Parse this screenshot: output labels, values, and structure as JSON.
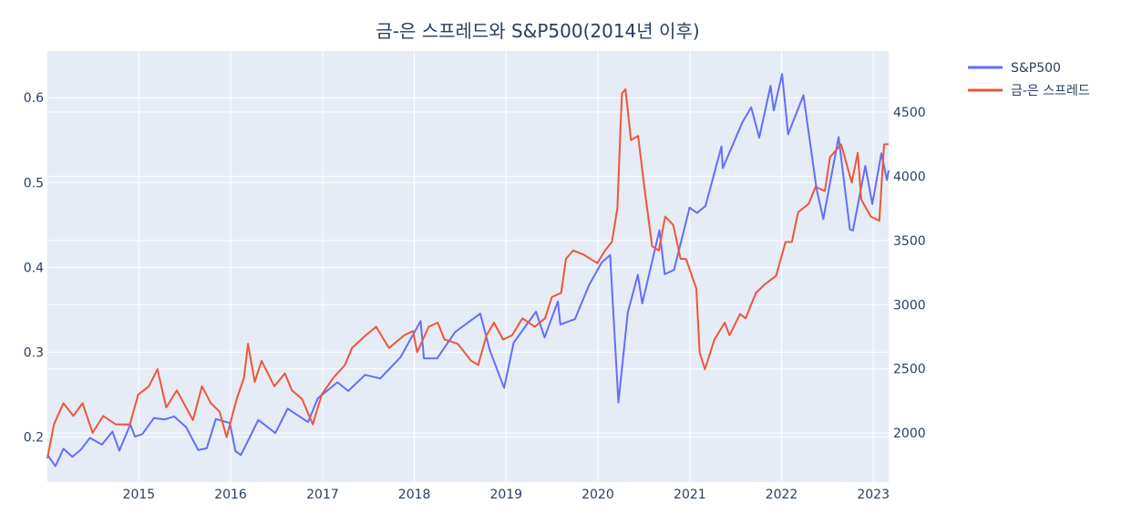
{
  "chart_data": {
    "type": "line",
    "title": "금-은 스프레드와 S&P500(2014년 이후)",
    "legend_position": "top-right",
    "grid": true,
    "colors": {
      "plot_bg": "#e5ecf6",
      "grid": "#ffffff",
      "text": "#2a3f5f"
    },
    "x_axis": {
      "type": "date",
      "range": [
        "2014-01-02",
        "2023-03-03"
      ],
      "ticks": [
        "2015-01-01",
        "2016-01-01",
        "2017-01-01",
        "2018-01-01",
        "2019-01-01",
        "2020-01-01",
        "2021-01-01",
        "2022-01-01",
        "2023-01-01"
      ],
      "tick_labels": [
        "2015",
        "2016",
        "2017",
        "2018",
        "2019",
        "2020",
        "2021",
        "2022",
        "2023"
      ]
    },
    "y_left": {
      "range": [
        0.147,
        0.655
      ],
      "ticks": [
        0.2,
        0.3,
        0.4,
        0.5,
        0.6
      ],
      "tick_labels": [
        "0.2",
        "0.3",
        "0.4",
        "0.5",
        "0.6"
      ]
    },
    "y_right": {
      "range": [
        1618,
        4975
      ],
      "ticks": [
        2000,
        2500,
        3000,
        3500,
        4000,
        4500
      ],
      "tick_labels": [
        "2000",
        "2500",
        "3000",
        "3500",
        "4000",
        "4500"
      ]
    },
    "series": [
      {
        "name": "S&P500",
        "axis": "right",
        "color": "#636efa",
        "points": [
          [
            "2014-01-02",
            1831
          ],
          [
            "2014-02-03",
            1742
          ],
          [
            "2014-03-07",
            1878
          ],
          [
            "2014-04-11",
            1815
          ],
          [
            "2014-05-15",
            1870
          ],
          [
            "2014-06-20",
            1962
          ],
          [
            "2014-08-07",
            1910
          ],
          [
            "2014-09-18",
            2011
          ],
          [
            "2014-10-15",
            1862
          ],
          [
            "2014-11-28",
            2067
          ],
          [
            "2014-12-16",
            1972
          ],
          [
            "2015-01-15",
            1992
          ],
          [
            "2015-03-02",
            2117
          ],
          [
            "2015-04-15",
            2106
          ],
          [
            "2015-05-21",
            2130
          ],
          [
            "2015-07-08",
            2046
          ],
          [
            "2015-08-25",
            1867
          ],
          [
            "2015-09-28",
            1881
          ],
          [
            "2015-11-03",
            2109
          ],
          [
            "2015-12-29",
            2078
          ],
          [
            "2016-01-20",
            1859
          ],
          [
            "2016-02-11",
            1829
          ],
          [
            "2016-04-20",
            2102
          ],
          [
            "2016-06-27",
            2000
          ],
          [
            "2016-08-15",
            2190
          ],
          [
            "2016-11-04",
            2085
          ],
          [
            "2016-12-13",
            2271
          ],
          [
            "2017-03-01",
            2395
          ],
          [
            "2017-04-13",
            2328
          ],
          [
            "2017-06-19",
            2453
          ],
          [
            "2017-08-18",
            2425
          ],
          [
            "2017-11-07",
            2591
          ],
          [
            "2018-01-26",
            2872
          ],
          [
            "2018-02-08",
            2581
          ],
          [
            "2018-04-02",
            2582
          ],
          [
            "2018-06-12",
            2786
          ],
          [
            "2018-09-20",
            2930
          ],
          [
            "2018-10-29",
            2641
          ],
          [
            "2018-12-24",
            2351
          ],
          [
            "2019-01-31",
            2704
          ],
          [
            "2019-04-30",
            2945
          ],
          [
            "2019-06-03",
            2744
          ],
          [
            "2019-07-26",
            3025
          ],
          [
            "2019-08-05",
            2845
          ],
          [
            "2019-10-02",
            2887
          ],
          [
            "2019-11-27",
            3153
          ],
          [
            "2020-01-17",
            3329
          ],
          [
            "2020-02-19",
            3386
          ],
          [
            "2020-03-23",
            2237
          ],
          [
            "2020-04-29",
            2939
          ],
          [
            "2020-06-08",
            3232
          ],
          [
            "2020-06-26",
            3009
          ],
          [
            "2020-09-02",
            3580
          ],
          [
            "2020-09-23",
            3237
          ],
          [
            "2020-10-30",
            3270
          ],
          [
            "2020-12-31",
            3756
          ],
          [
            "2021-01-29",
            3714
          ],
          [
            "2021-03-04",
            3768
          ],
          [
            "2021-05-07",
            4232
          ],
          [
            "2021-05-12",
            4063
          ],
          [
            "2021-07-29",
            4419
          ],
          [
            "2021-09-02",
            4537
          ],
          [
            "2021-10-04",
            4300
          ],
          [
            "2021-11-18",
            4704
          ],
          [
            "2021-12-01",
            4513
          ],
          [
            "2022-01-03",
            4796
          ],
          [
            "2022-01-27",
            4326
          ],
          [
            "2022-03-29",
            4631
          ],
          [
            "2022-05-20",
            3901
          ],
          [
            "2022-06-16",
            3666
          ],
          [
            "2022-08-16",
            4305
          ],
          [
            "2022-09-30",
            3586
          ],
          [
            "2022-10-12",
            3577
          ],
          [
            "2022-11-30",
            4080
          ],
          [
            "2022-12-28",
            3783
          ],
          [
            "2023-02-02",
            4179
          ],
          [
            "2023-02-24",
            3970
          ],
          [
            "2023-03-03",
            4046
          ]
        ]
      },
      {
        "name": "금-은 스프레드",
        "axis": "left",
        "color": "#ef553b",
        "points": [
          [
            "2014-01-02",
            0.175
          ],
          [
            "2014-01-28",
            0.215
          ],
          [
            "2014-03-07",
            0.24
          ],
          [
            "2014-04-15",
            0.225
          ],
          [
            "2014-05-22",
            0.24
          ],
          [
            "2014-07-01",
            0.205
          ],
          [
            "2014-08-12",
            0.225
          ],
          [
            "2014-10-01",
            0.215
          ],
          [
            "2014-11-26",
            0.215
          ],
          [
            "2014-12-29",
            0.25
          ],
          [
            "2015-02-10",
            0.26
          ],
          [
            "2015-03-16",
            0.28
          ],
          [
            "2015-04-20",
            0.235
          ],
          [
            "2015-06-01",
            0.255
          ],
          [
            "2015-08-04",
            0.22
          ],
          [
            "2015-09-09",
            0.26
          ],
          [
            "2015-10-14",
            0.24
          ],
          [
            "2015-11-18",
            0.23
          ],
          [
            "2015-12-16",
            0.2
          ],
          [
            "2016-01-25",
            0.245
          ],
          [
            "2016-02-23",
            0.27
          ],
          [
            "2016-03-10",
            0.31
          ],
          [
            "2016-04-06",
            0.265
          ],
          [
            "2016-05-03",
            0.29
          ],
          [
            "2016-06-23",
            0.26
          ],
          [
            "2016-08-04",
            0.275
          ],
          [
            "2016-09-01",
            0.255
          ],
          [
            "2016-10-11",
            0.245
          ],
          [
            "2016-11-23",
            0.215
          ],
          [
            "2016-12-28",
            0.25
          ],
          [
            "2017-02-13",
            0.27
          ],
          [
            "2017-03-31",
            0.285
          ],
          [
            "2017-04-28",
            0.305
          ],
          [
            "2017-06-22",
            0.32
          ],
          [
            "2017-08-02",
            0.33
          ],
          [
            "2017-09-22",
            0.305
          ],
          [
            "2017-11-22",
            0.32
          ],
          [
            "2017-12-27",
            0.325
          ],
          [
            "2018-01-12",
            0.3
          ],
          [
            "2018-02-27",
            0.33
          ],
          [
            "2018-04-04",
            0.335
          ],
          [
            "2018-05-01",
            0.315
          ],
          [
            "2018-06-22",
            0.31
          ],
          [
            "2018-08-15",
            0.29
          ],
          [
            "2018-09-12",
            0.285
          ],
          [
            "2018-10-15",
            0.32
          ],
          [
            "2018-11-14",
            0.335
          ],
          [
            "2018-12-20",
            0.315
          ],
          [
            "2019-01-25",
            0.32
          ],
          [
            "2019-03-07",
            0.34
          ],
          [
            "2019-04-25",
            0.33
          ],
          [
            "2019-06-05",
            0.34
          ],
          [
            "2019-07-02",
            0.365
          ],
          [
            "2019-08-08",
            0.37
          ],
          [
            "2019-08-27",
            0.41
          ],
          [
            "2019-09-25",
            0.42
          ],
          [
            "2019-11-06",
            0.415
          ],
          [
            "2019-12-30",
            0.405
          ],
          [
            "2020-01-30",
            0.42
          ],
          [
            "2020-02-26",
            0.43
          ],
          [
            "2020-03-19",
            0.47
          ],
          [
            "2020-03-31",
            0.565
          ],
          [
            "2020-04-06",
            0.605
          ],
          [
            "2020-04-20",
            0.61
          ],
          [
            "2020-05-12",
            0.55
          ],
          [
            "2020-06-09",
            0.555
          ],
          [
            "2020-07-06",
            0.49
          ],
          [
            "2020-08-04",
            0.425
          ],
          [
            "2020-08-31",
            0.42
          ],
          [
            "2020-09-25",
            0.46
          ],
          [
            "2020-10-27",
            0.45
          ],
          [
            "2020-11-25",
            0.41
          ],
          [
            "2020-12-17",
            0.41
          ],
          [
            "2021-01-27",
            0.375
          ],
          [
            "2021-02-09",
            0.3
          ],
          [
            "2021-03-02",
            0.28
          ],
          [
            "2021-04-09",
            0.315
          ],
          [
            "2021-05-20",
            0.335
          ],
          [
            "2021-06-08",
            0.32
          ],
          [
            "2021-07-20",
            0.345
          ],
          [
            "2021-08-11",
            0.34
          ],
          [
            "2021-09-21",
            0.37
          ],
          [
            "2021-10-26",
            0.38
          ],
          [
            "2021-12-10",
            0.39
          ],
          [
            "2022-01-17",
            0.43
          ],
          [
            "2022-02-11",
            0.43
          ],
          [
            "2022-03-08",
            0.465
          ],
          [
            "2022-04-19",
            0.475
          ],
          [
            "2022-05-16",
            0.495
          ],
          [
            "2022-06-22",
            0.49
          ],
          [
            "2022-07-13",
            0.53
          ],
          [
            "2022-08-26",
            0.545
          ],
          [
            "2022-10-07",
            0.5
          ],
          [
            "2022-10-31",
            0.535
          ],
          [
            "2022-11-14",
            0.48
          ],
          [
            "2022-12-22",
            0.46
          ],
          [
            "2023-01-25",
            0.455
          ],
          [
            "2023-02-13",
            0.545
          ],
          [
            "2023-03-03",
            0.545
          ]
        ]
      }
    ]
  }
}
